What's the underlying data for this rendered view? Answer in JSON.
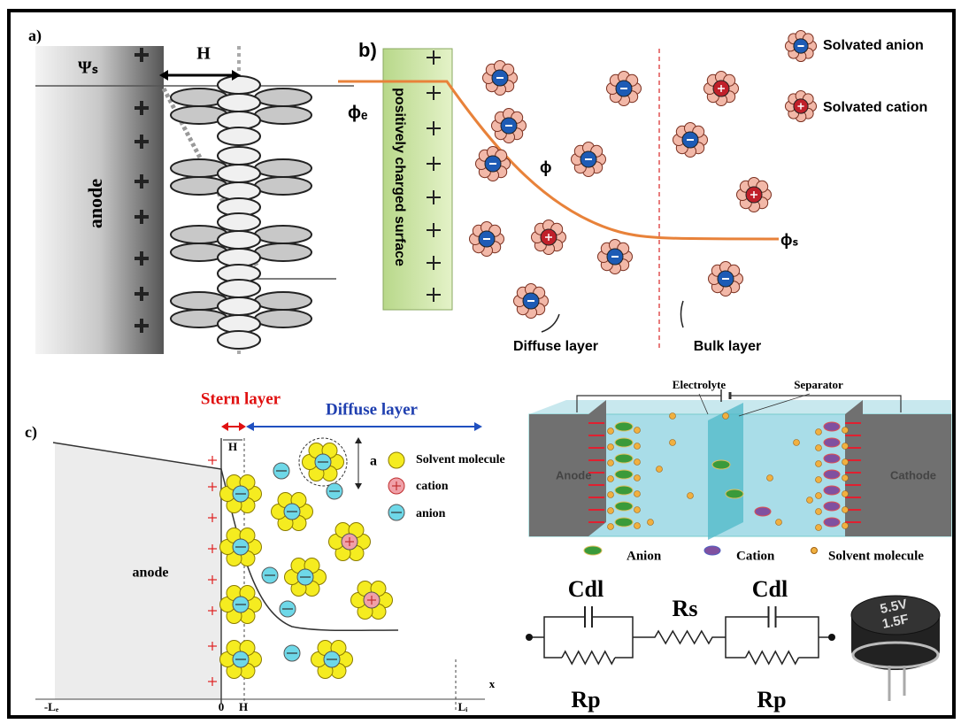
{
  "panel_a": {
    "label": "a)",
    "h_label": "H",
    "psi_label": "Ψₛ",
    "electrode": "anode"
  },
  "panel_b": {
    "label": "b)",
    "surface": "positively charged surface",
    "phi_e": "ϕₑ",
    "phi": "ϕ",
    "phi_s": "ϕₛ",
    "diffuse": "Diffuse layer",
    "bulk": "Bulk layer",
    "legend": [
      "Solvated anion",
      "Solvated cation"
    ]
  },
  "panel_c": {
    "label": "c)",
    "stern": "Stern layer",
    "diffuse": "Diffuse layer",
    "h_label": "H",
    "a_label": "a",
    "legend": [
      "Solvent molecule",
      "cation",
      "anion"
    ],
    "electrode": "anode",
    "axis": {
      "x_labels": [
        "-Lₑ",
        "0",
        "H",
        "Lᵢ"
      ],
      "x_title": "x"
    }
  },
  "cell": {
    "electrolyte": "Electrolyte",
    "separator": "Separator",
    "anode": "Anode",
    "cathode": "Cathode",
    "legend": [
      "Anion",
      "Cation",
      "Solvent molecule"
    ]
  },
  "circuit": {
    "cdl_left": "Cdl",
    "rs": "Rs",
    "cdl_right": "Cdl",
    "rp_left": "Rp",
    "rp_right": "Rp",
    "capacitor_labels": [
      "5.5V",
      "1.5F"
    ]
  }
}
